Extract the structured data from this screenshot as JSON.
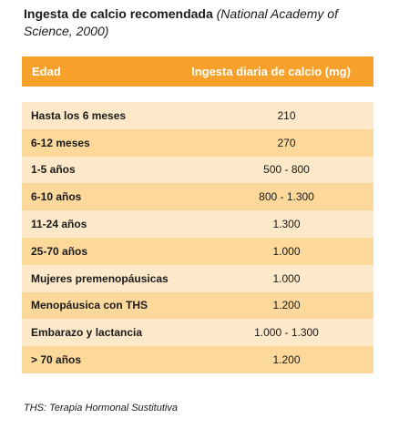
{
  "title": {
    "main": "Ingesta de calcio recomendada",
    "reference": "(National Academy of Science, 2000)"
  },
  "table": {
    "headers": [
      "Edad",
      "Ingesta diaria de calcio (mg)"
    ],
    "rows": [
      {
        "age": "Hasta los 6 meses",
        "intake": "210"
      },
      {
        "age": "6-12 meses",
        "intake": "270"
      },
      {
        "age": "1-5 años",
        "intake": "500 - 800"
      },
      {
        "age": "6-10 años",
        "intake": "800 - 1.300"
      },
      {
        "age": "11-24 años",
        "intake": "1.300"
      },
      {
        "age": "25-70 años",
        "intake": "1.000"
      },
      {
        "age": "Mujeres premenopáusicas",
        "intake": "1.000"
      },
      {
        "age": "Menopáusica con THS",
        "intake": "1.200"
      },
      {
        "age": "Embarazo y lactancia",
        "intake": "1.000 - 1.300"
      },
      {
        "age": "> 70 años",
        "intake": "1.200"
      }
    ]
  },
  "footnote": "THS: Terapia Hormonal Sustitutiva",
  "colors": {
    "header": "#f7a12b",
    "row_light": "#fde9c9",
    "row_dark": "#fcd89b"
  }
}
